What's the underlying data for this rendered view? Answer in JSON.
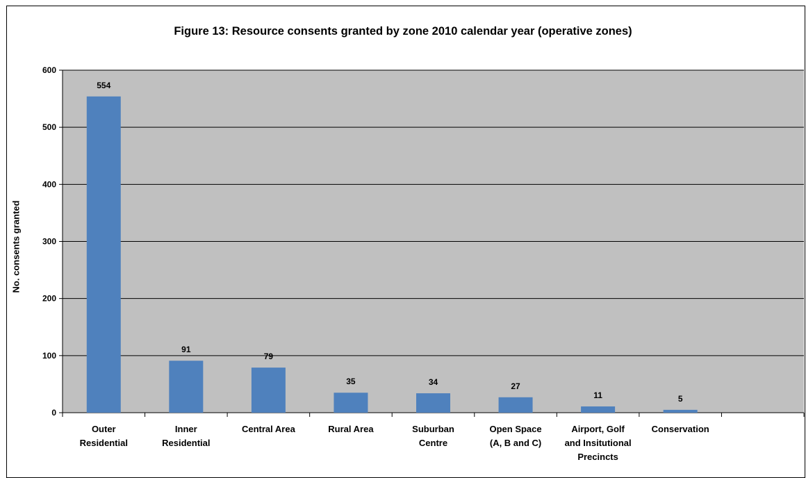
{
  "chart_data": {
    "type": "bar",
    "title": "Figure 13: Resource consents granted by zone 2010 calendar year (operative zones)",
    "xlabel": "",
    "ylabel": "No. consents granted",
    "ylim": [
      0,
      600
    ],
    "yticks": [
      "0",
      "100",
      "200",
      "300",
      "400",
      "500",
      "600"
    ],
    "categories": [
      [
        "Outer",
        "Residential"
      ],
      [
        "Inner",
        "Residential"
      ],
      [
        "Central Area"
      ],
      [
        "Rural Area"
      ],
      [
        "Suburban",
        "Centre"
      ],
      [
        "Open Space",
        "(A, B and C)"
      ],
      [
        "Airport, Golf",
        "and Insitutional",
        "Precincts"
      ],
      [
        "Conservation"
      ]
    ],
    "values": [
      554,
      91,
      79,
      35,
      34,
      27,
      11,
      5
    ],
    "bar_color": "#4F81BD",
    "plot_background": "#C0C0C0",
    "grid": true,
    "legend": "none"
  }
}
